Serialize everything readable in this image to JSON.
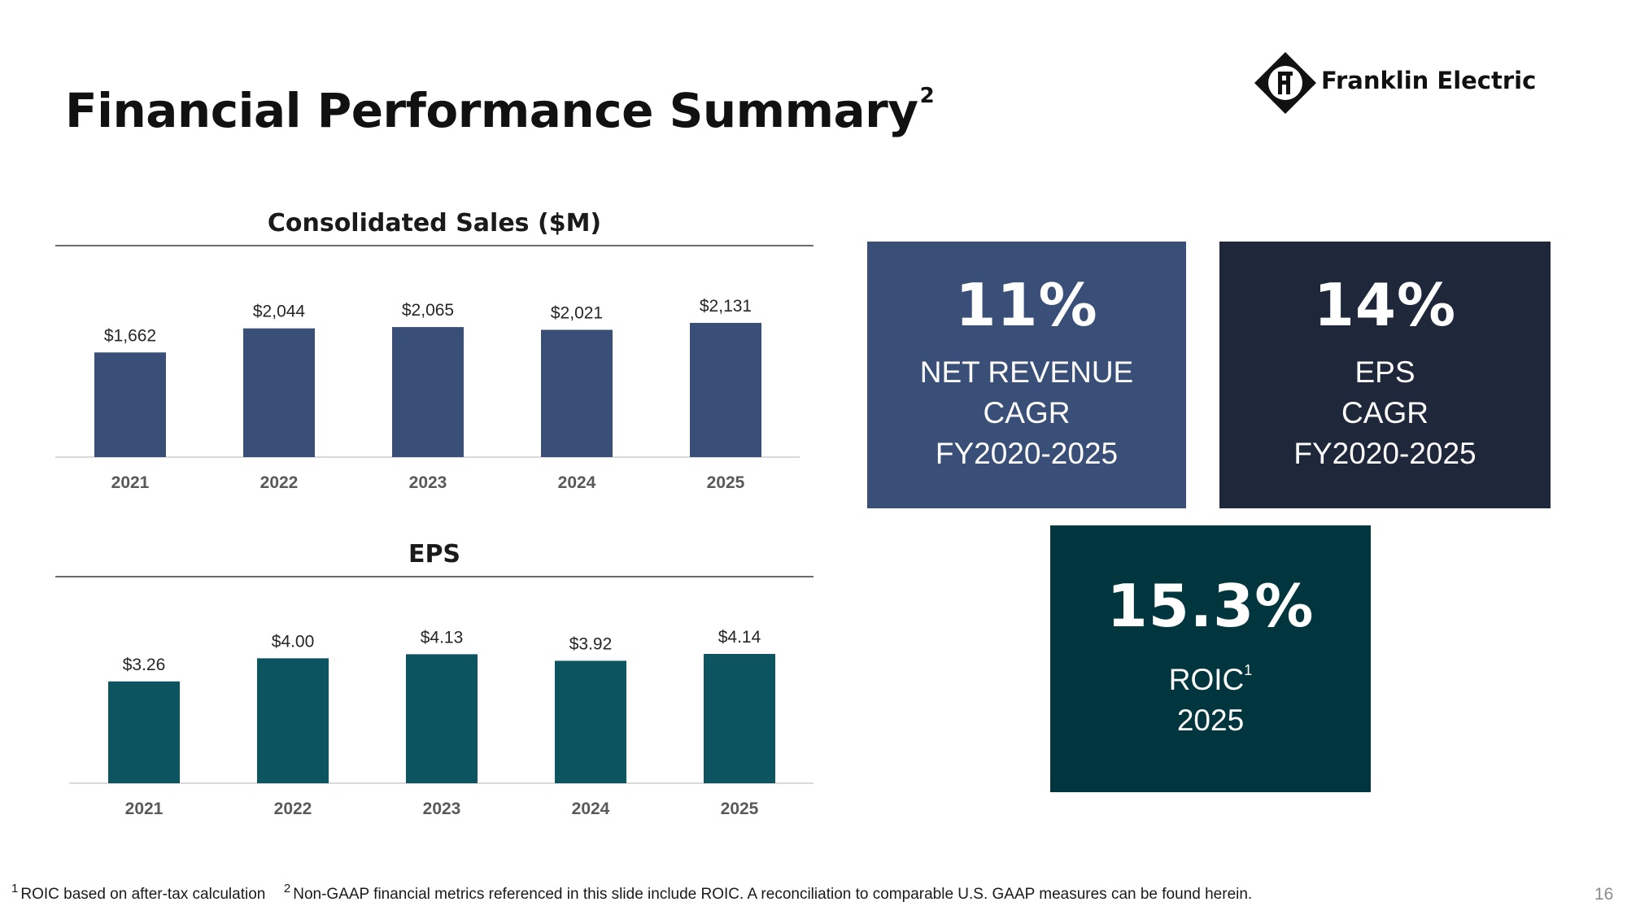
{
  "slide": {
    "title": "Financial Performance Summary",
    "title_superscript": "2",
    "page_number": "16"
  },
  "logo": {
    "company_name": "Franklin Electric",
    "icon": "franklin-electric-diamond-logo"
  },
  "chart_data": [
    {
      "type": "bar",
      "title": "Consolidated Sales ($M)",
      "categories": [
        "2021",
        "2022",
        "2023",
        "2024",
        "2025"
      ],
      "values": [
        1662,
        2044,
        2065,
        2021,
        2131
      ],
      "data_labels": [
        "$1,662",
        "$2,044",
        "$2,065",
        "$2,021",
        "$2,131"
      ],
      "xlabel": "",
      "ylabel": "",
      "ylim": [
        0,
        2131
      ],
      "bar_color": "#394f77",
      "grid": false
    },
    {
      "type": "bar",
      "title": "EPS",
      "categories": [
        "2021",
        "2022",
        "2023",
        "2024",
        "2025"
      ],
      "values": [
        3.26,
        4.0,
        4.13,
        3.92,
        4.14
      ],
      "data_labels": [
        "$3.26",
        "$4.00",
        "$4.13",
        "$3.92",
        "$4.14"
      ],
      "xlabel": "",
      "ylabel": "",
      "ylim": [
        0,
        4.14
      ],
      "bar_color": "#0c5560",
      "grid": false
    }
  ],
  "kpis": {
    "revenue": {
      "value": "11%",
      "line1": "NET REVENUE",
      "line2": "CAGR",
      "line3": "FY2020-2025",
      "color": "#394f77"
    },
    "eps": {
      "value": "14%",
      "line1": "EPS",
      "line2": "CAGR",
      "line3": "FY2020-2025",
      "color": "#1f283b"
    },
    "roic": {
      "value": "15.3%",
      "line1": "ROIC",
      "line1_superscript": "1",
      "line2": "2025",
      "color": "#01363f"
    }
  },
  "footnotes": {
    "note1_marker": "1",
    "note1_text": "ROIC based on after-tax calculation",
    "note2_marker": "2",
    "note2_text": "Non-GAAP financial metrics referenced in this slide include ROIC. A reconciliation to comparable U.S. GAAP measures can be found herein."
  }
}
